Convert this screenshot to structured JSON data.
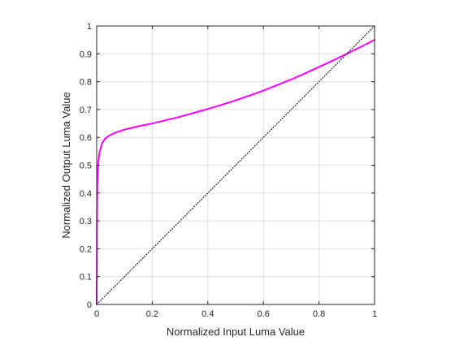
{
  "chart_data": {
    "type": "line",
    "xlabel": "Normalized Input Luma Value",
    "ylabel": "Normalized Output Luma Value",
    "xlim": [
      0,
      1
    ],
    "ylim": [
      0,
      1
    ],
    "grid": true,
    "xticks": [
      0,
      0.2,
      0.4,
      0.6,
      0.8,
      1
    ],
    "yticks": [
      0,
      0.1,
      0.2,
      0.3,
      0.4,
      0.5,
      0.6,
      0.7,
      0.8,
      0.9,
      1
    ],
    "xtick_labels": [
      "0",
      "0.2",
      "0.4",
      "0.6",
      "0.8",
      "1"
    ],
    "ytick_labels": [
      "0",
      "0.1",
      "0.2",
      "0.3",
      "0.4",
      "0.5",
      "0.6",
      "0.7",
      "0.8",
      "0.9",
      "1"
    ],
    "series": [
      {
        "style": "solid",
        "color": "#ff00ff",
        "x": [
          0,
          0.0005,
          0.001,
          0.002,
          0.003,
          0.005,
          0.008,
          0.01,
          0.015,
          0.02,
          0.03,
          0.04,
          0.05,
          0.07,
          0.1,
          0.15,
          0.2,
          0.25,
          0.3,
          0.35,
          0.4,
          0.45,
          0.5,
          0.55,
          0.6,
          0.65,
          0.7,
          0.75,
          0.8,
          0.85,
          0.9,
          0.95,
          1.0
        ],
        "y": [
          0,
          0.1,
          0.3,
          0.42,
          0.46,
          0.5,
          0.53,
          0.545,
          0.565,
          0.58,
          0.595,
          0.603,
          0.609,
          0.618,
          0.628,
          0.64,
          0.65,
          0.662,
          0.674,
          0.688,
          0.702,
          0.717,
          0.733,
          0.75,
          0.768,
          0.788,
          0.808,
          0.83,
          0.853,
          0.876,
          0.9,
          0.925,
          0.95
        ]
      },
      {
        "style": "dotted",
        "color": "#000000",
        "x": [
          0,
          1
        ],
        "y": [
          0,
          1
        ]
      }
    ]
  }
}
